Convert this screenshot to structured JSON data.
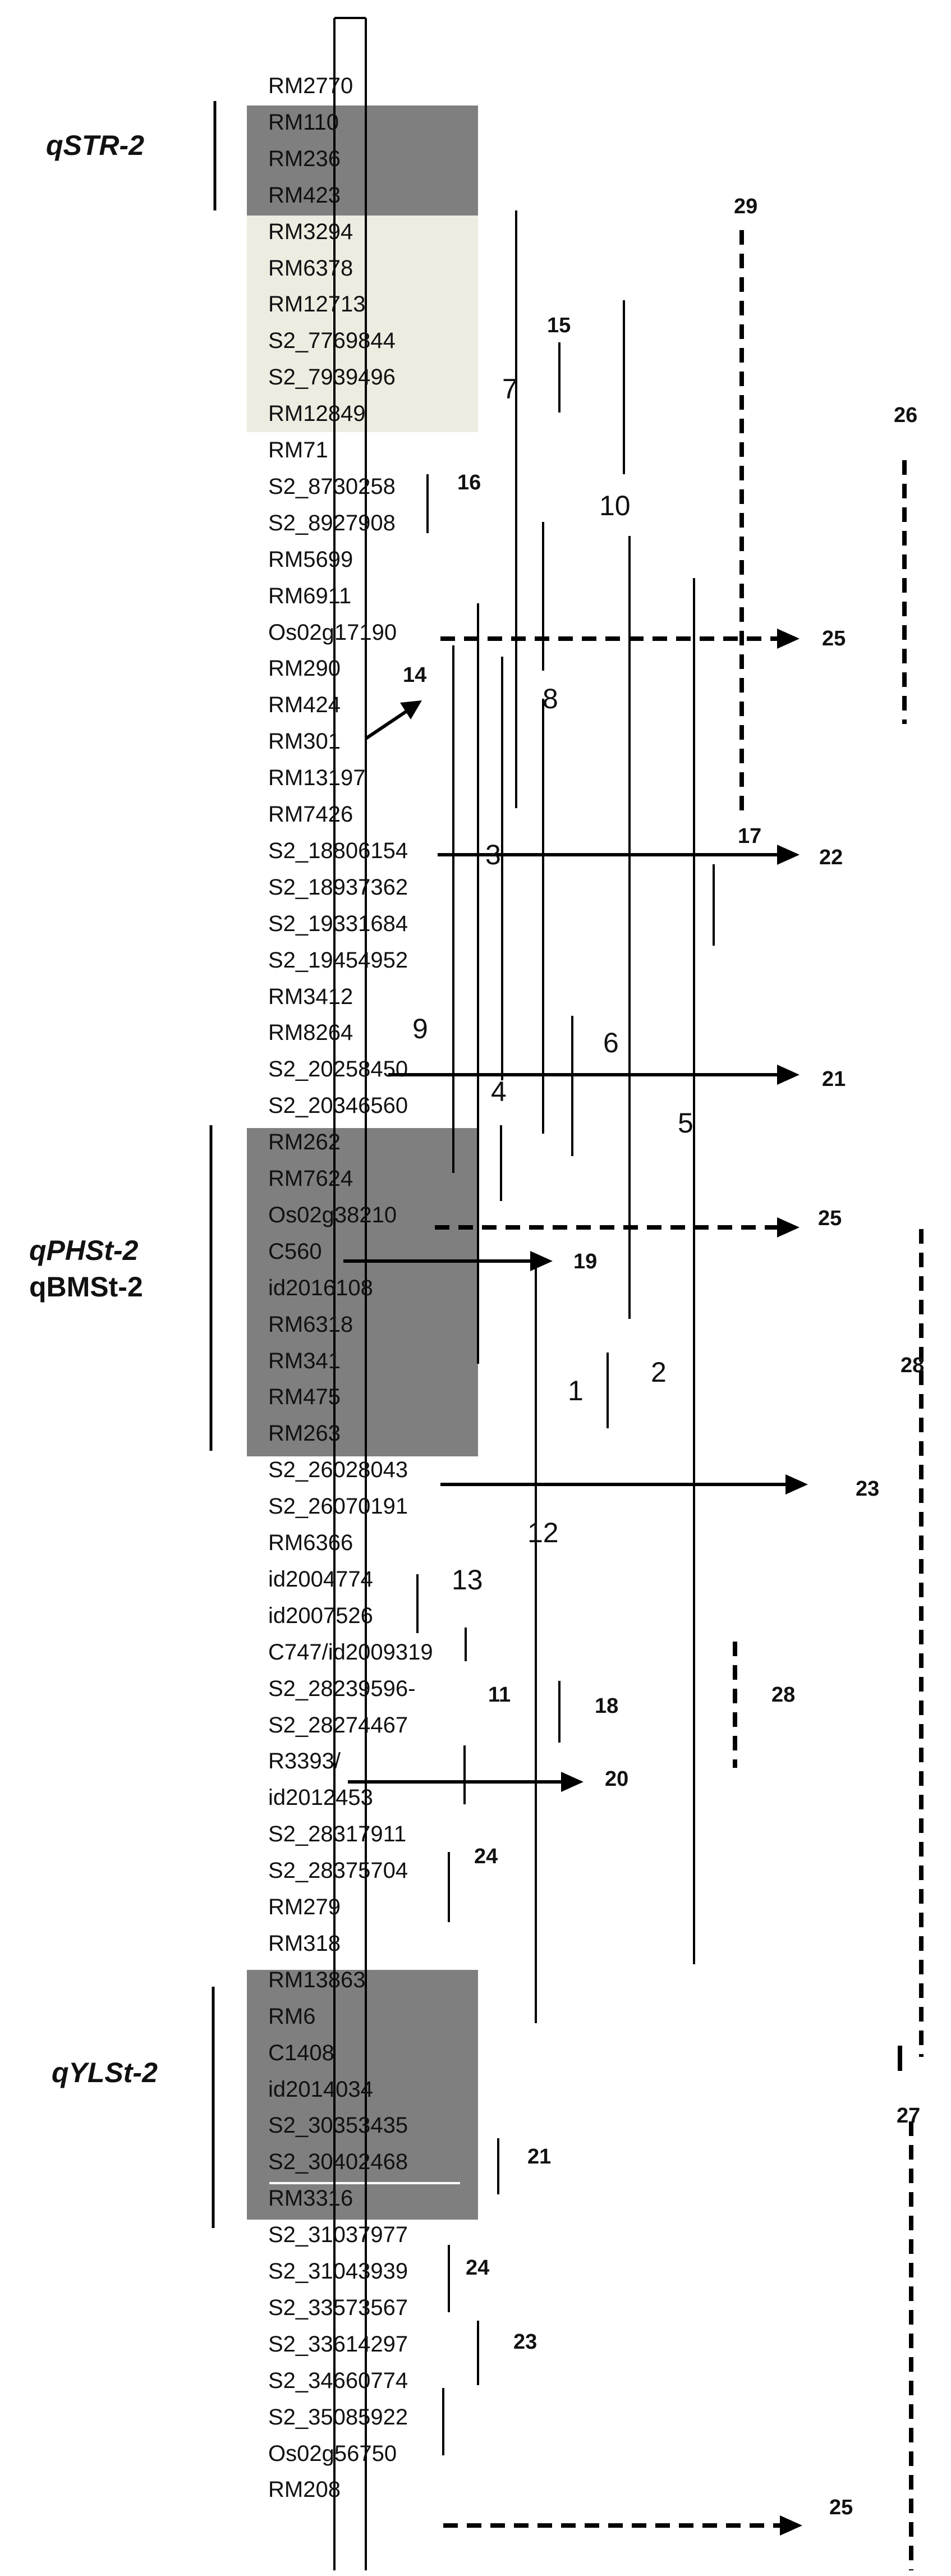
{
  "markers": [
    "RM2770",
    "RM110",
    "RM236",
    "RM423",
    "RM3294",
    "RM6378",
    "RM12713",
    "S2_7769844",
    "S2_7939496",
    "RM12849",
    "RM71",
    "S2_8730258",
    "S2_8927908",
    "RM5699",
    "RM6911",
    "Os02g17190",
    "RM290",
    "RM424",
    "RM301",
    "RM13197",
    "RM7426",
    "S2_18806154",
    "S2_18937362",
    "S2_19331684",
    "S2_19454952",
    "RM3412",
    "RM8264",
    "S2_20258450",
    "S2_20346560",
    "RM262",
    "RM7624",
    "Os02g38210",
    "C560",
    "id2016108",
    "RM6318",
    "RM341",
    "RM475",
    "RM263",
    "S2_26028043",
    "S2_26070191",
    "RM6366",
    "id2004774",
    "id2007526",
    "C747/id2009319",
    "S2_28239596-",
    "S2_28274467",
    "R3393/",
    "id2012453",
    "S2_28317911",
    "S2_28375704",
    "RM279",
    "RM318",
    "RM13863",
    "RM6",
    "C1408",
    "id2014034",
    "S2_30353435",
    "S2_30402468",
    "RM3316",
    "S2_31037977",
    "S2_31043939",
    "S2_33573567",
    "S2_33614297",
    "S2_34660774",
    "S2_35085922",
    "Os02g56750",
    "RM208"
  ],
  "qtl_labels": {
    "str": "qSTR-2",
    "phst": "qPHSt-2",
    "bmst": "qBMSt-2",
    "ylst": "qYLSt-2"
  },
  "interval_numbers": {
    "n1": "1",
    "n2": "2",
    "n3": "3",
    "n4": "4",
    "n5": "5",
    "n6": "6",
    "n7": "7",
    "n8": "8",
    "n9": "9",
    "n10": "10",
    "n11": "11",
    "n12": "12",
    "n13": "13",
    "n14": "14",
    "n15": "15",
    "n16": "16",
    "n17": "17",
    "n18": "18",
    "n19": "19",
    "n20": "20",
    "n21a": "21",
    "n21b": "21",
    "n22": "22",
    "n23a": "23",
    "n23b": "23",
    "n24a": "24",
    "n24b": "24",
    "n25a": "25",
    "n25b": "25",
    "n25c": "25",
    "n26": "26",
    "n27": "27",
    "n28a": "28",
    "n28b": "28",
    "n29": "29"
  },
  "colors": {
    "qtl_block": "#7f7f7f",
    "light_block": "#eeece1",
    "line": "#000000"
  }
}
